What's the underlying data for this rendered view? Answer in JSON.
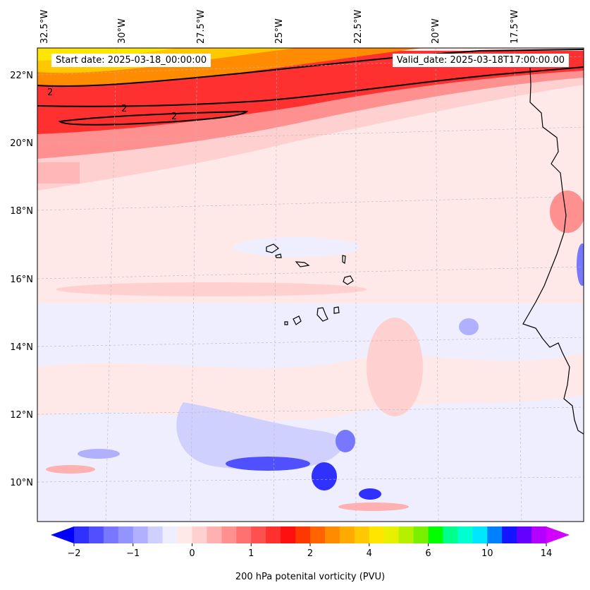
{
  "map": {
    "region": "Eastern tropical Atlantic / Cape Verde",
    "longitude_labels": [
      "32.5°W",
      "30°W",
      "27.5°W",
      "25°W",
      "22.5°W",
      "20°W",
      "17.5°W"
    ],
    "latitude_labels": [
      "22°N",
      "20°N",
      "18°N",
      "16°N",
      "14°N",
      "12°N",
      "10°N"
    ],
    "contour_label": "2"
  },
  "header": {
    "start_date": "Start date: 2025-03-18_00:00:00",
    "valid_date": "Valid_date: 2025-03-18T17:00:00.00"
  },
  "colorbar": {
    "title": "200 hPa potenital vorticity (PVU)",
    "tick_labels": [
      "−2",
      "−1",
      "0",
      "1",
      "2",
      "4",
      "6",
      "10",
      "14"
    ],
    "levels": [
      -2,
      -1.75,
      -1.5,
      -1.25,
      -1,
      -0.75,
      -0.5,
      -0.25,
      0,
      0.25,
      0.5,
      0.75,
      1,
      1.25,
      1.5,
      1.75,
      2,
      2.5,
      3,
      3.5,
      4,
      4.5,
      5,
      5.5,
      6,
      7,
      8,
      9,
      10,
      11,
      12,
      13,
      14
    ],
    "colors": [
      "#1414ff",
      "#3030ff",
      "#5050ff",
      "#7878ff",
      "#9494ff",
      "#b0b0ff",
      "#d0d0ff",
      "#eeeeff",
      "#ffe8e8",
      "#ffd0d0",
      "#ffb0b0",
      "#ff9090",
      "#ff7070",
      "#ff5050",
      "#ff3030",
      "#ff1010",
      "#ff3800",
      "#ff6400",
      "#ff8c00",
      "#ffaa00",
      "#ffc800",
      "#ffe600",
      "#e6f000",
      "#b4f000",
      "#78f000",
      "#00ff00",
      "#00ff8c",
      "#00ffd0",
      "#00e6ff",
      "#0080ff",
      "#1414ff",
      "#6400ff",
      "#b400ff"
    ],
    "extend_low_color": "#0000ff",
    "extend_high_color": "#d200ff"
  }
}
